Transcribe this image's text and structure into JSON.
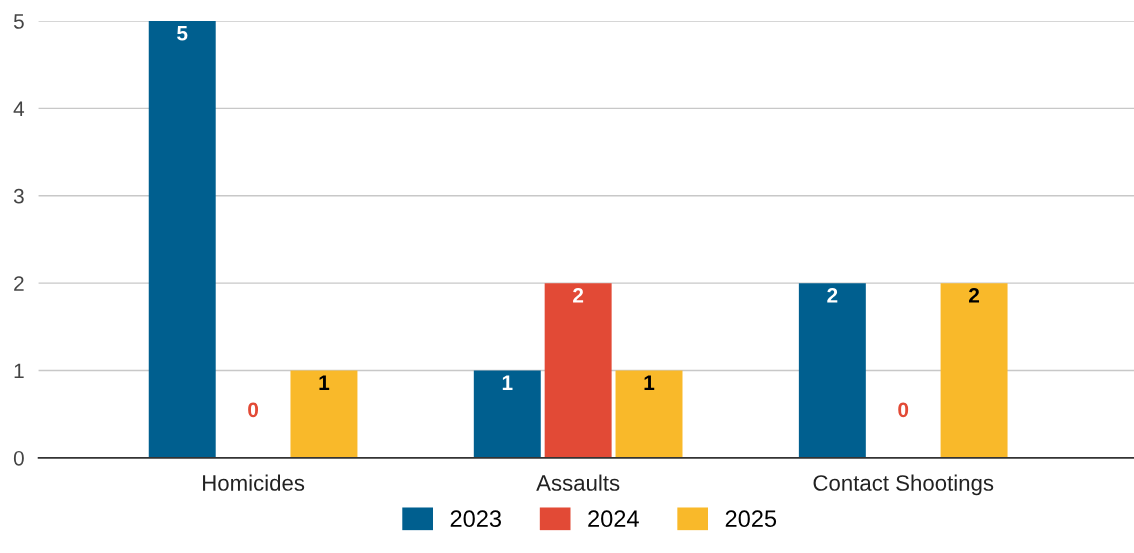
{
  "chart_data": {
    "type": "bar",
    "categories": [
      "Homicides",
      "Assaults",
      "Contact Shootings"
    ],
    "series": [
      {
        "name": "2023",
        "color": "#005f8f",
        "values": [
          5,
          1,
          2
        ]
      },
      {
        "name": "2024",
        "color": "#e24a36",
        "values": [
          0,
          2,
          0
        ]
      },
      {
        "name": "2025",
        "color": "#f9b92a",
        "values": [
          1,
          1,
          2
        ]
      }
    ],
    "ylim": [
      0,
      5
    ],
    "yticks": [
      0,
      1,
      2,
      3,
      4,
      5
    ],
    "grid": "y",
    "legend": "bottom",
    "data_labels": true
  }
}
